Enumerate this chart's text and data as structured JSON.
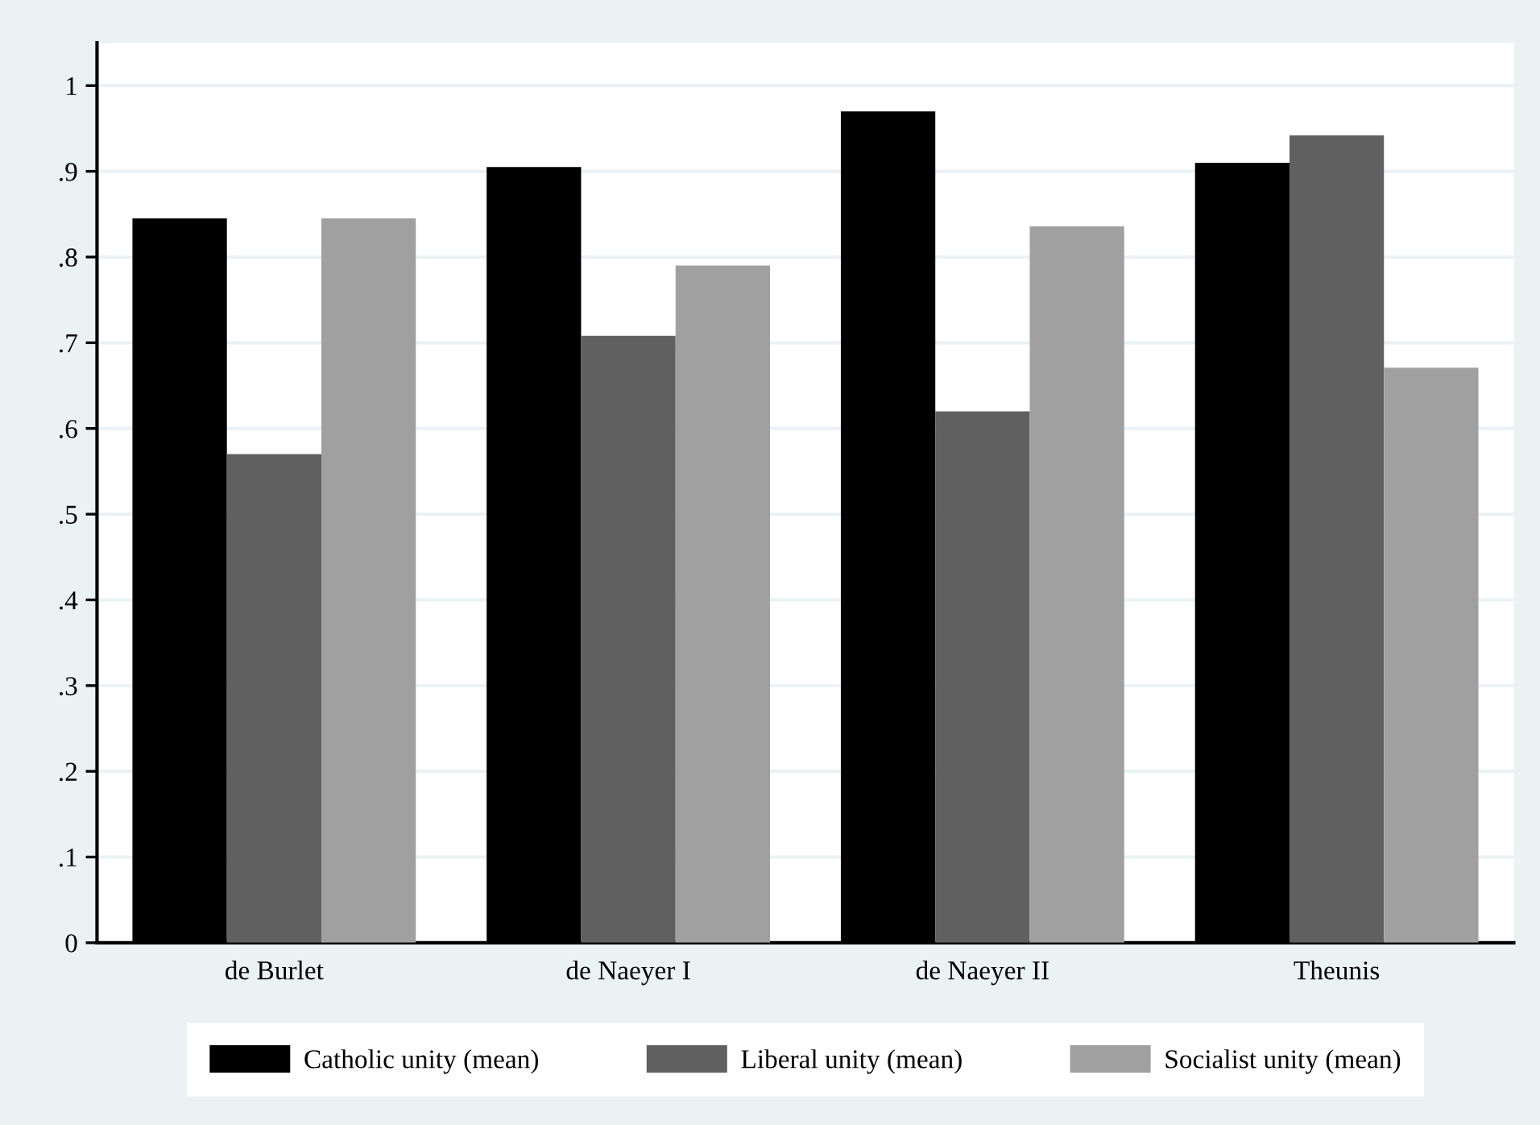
{
  "chart_data": {
    "type": "bar",
    "categories": [
      "de Burlet",
      "de Naeyer I",
      "de Naeyer II",
      "Theunis"
    ],
    "series": [
      {
        "name": "Catholic unity (mean)",
        "color": "#000000",
        "values": [
          0.845,
          0.905,
          0.97,
          0.91
        ]
      },
      {
        "name": "Liberal unity (mean)",
        "color": "#606060",
        "values": [
          0.57,
          0.708,
          0.62,
          0.942
        ]
      },
      {
        "name": "Socialist unity (mean)",
        "color": "#a0a0a0",
        "values": [
          0.845,
          0.79,
          0.836,
          0.671
        ]
      }
    ],
    "ylim": [
      0,
      1.05
    ],
    "yticks": [
      0,
      {
        "value": 0.1,
        "label": ".1"
      },
      {
        "value": 0.2,
        "label": ".2"
      },
      {
        "value": 0.3,
        "label": ".3"
      },
      {
        "value": 0.4,
        "label": ".4"
      },
      {
        "value": 0.5,
        "label": ".5"
      },
      {
        "value": 0.6,
        "label": ".6"
      },
      {
        "value": 0.7,
        "label": ".7"
      },
      {
        "value": 0.8,
        "label": ".8"
      },
      {
        "value": 0.9,
        "label": ".9"
      },
      1
    ],
    "grid": "y",
    "legend": "bottom"
  }
}
